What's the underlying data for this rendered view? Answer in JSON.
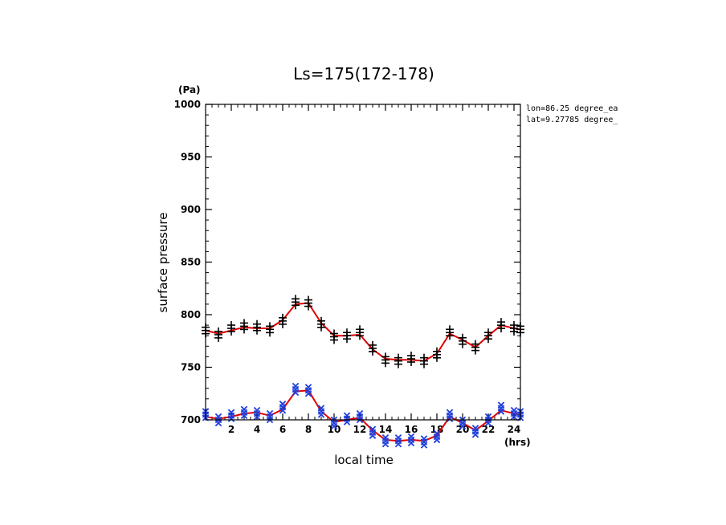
{
  "chart_data": {
    "type": "scatter",
    "title": "Ls=175(172-178)",
    "xlabel": "local time",
    "ylabel": "surface pressure",
    "x_unit": "(hrs)",
    "y_unit": "(Pa)",
    "xlim": [
      0,
      24.5
    ],
    "ylim": [
      700,
      1000
    ],
    "x_ticks": [
      2,
      4,
      6,
      8,
      10,
      12,
      14,
      16,
      18,
      20,
      22,
      24
    ],
    "y_ticks": [
      700,
      750,
      800,
      850,
      900,
      950,
      1000
    ],
    "x_minor_step": 0.5,
    "y_minor_step": 10,
    "annotations": [
      "lon=86.25 degree_ea",
      "lat=9.27785 degree_"
    ],
    "grid": false,
    "legend": "none",
    "series": [
      {
        "marker": "plus",
        "color": "#000000",
        "x": [
          0,
          1,
          2,
          3,
          4,
          5,
          6,
          7,
          8,
          9,
          10,
          11,
          12,
          13,
          14,
          15,
          16,
          17,
          18,
          19,
          20,
          21,
          22,
          23,
          24,
          24.5
        ],
        "y": [
          785,
          781,
          787,
          789,
          788,
          786,
          794,
          812,
          811,
          791,
          779,
          780,
          783,
          768,
          757,
          756,
          758,
          756,
          762,
          783,
          775,
          769,
          780,
          790,
          787,
          786
        ]
      },
      {
        "marker": "x",
        "color": "#1f3fdc",
        "x": [
          0,
          1,
          2,
          3,
          4,
          5,
          6,
          7,
          8,
          9,
          10,
          11,
          12,
          13,
          14,
          15,
          16,
          17,
          18,
          19,
          20,
          21,
          22,
          23,
          24,
          24.5
        ],
        "y": [
          705,
          700,
          704,
          707,
          706,
          703,
          712,
          729,
          728,
          708,
          697,
          701,
          703,
          688,
          680,
          680,
          681,
          679,
          684,
          704,
          697,
          689,
          700,
          711,
          706,
          705
        ]
      },
      {
        "type": "line",
        "color": "#e00000",
        "x": [
          0,
          1,
          2,
          3,
          4,
          5,
          6,
          7,
          8,
          9,
          10,
          11,
          12,
          13,
          14,
          15,
          16,
          17,
          18,
          19,
          20,
          21,
          22,
          23,
          24,
          24.5
        ],
        "y": [
          785,
          782,
          785,
          788,
          787,
          787,
          795,
          810,
          811,
          792,
          780,
          780,
          781,
          767,
          758,
          757,
          757,
          756,
          763,
          782,
          776,
          769,
          780,
          790,
          787,
          786
        ]
      },
      {
        "type": "line",
        "color": "#e00000",
        "x": [
          0,
          1,
          2,
          3,
          4,
          5,
          6,
          7,
          8,
          9,
          10,
          11,
          12,
          13,
          14,
          15,
          16,
          17,
          18,
          19,
          20,
          21,
          22,
          23,
          24,
          24.5
        ],
        "y": [
          703,
          701,
          703,
          706,
          707,
          704,
          710,
          727,
          728,
          708,
          698,
          700,
          702,
          690,
          681,
          680,
          681,
          680,
          685,
          703,
          697,
          690,
          699,
          709,
          706,
          705
        ]
      }
    ]
  }
}
